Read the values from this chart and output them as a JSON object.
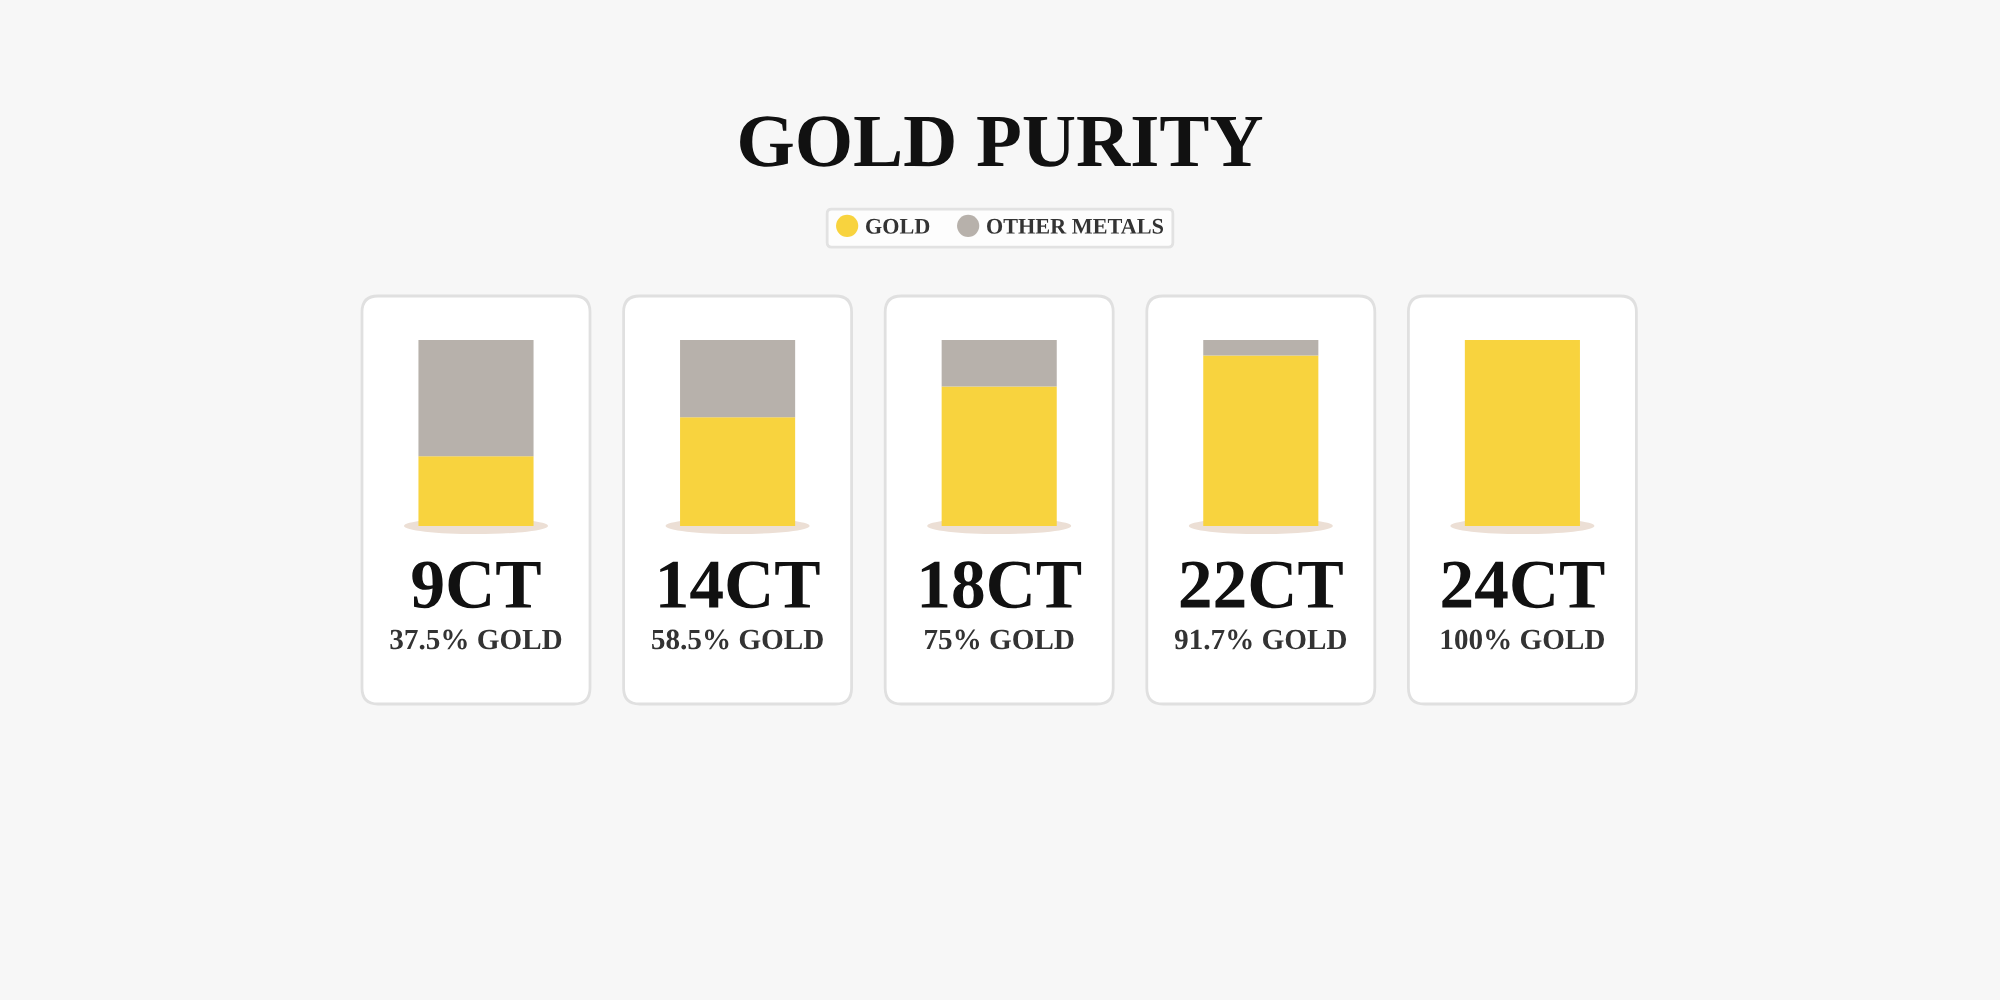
{
  "chart_data": {
    "type": "bar",
    "stacked": true,
    "title": "GOLD PURITY",
    "categories": [
      "9CT",
      "14CT",
      "18CT",
      "22CT",
      "24CT"
    ],
    "series": [
      {
        "name": "GOLD",
        "color": "#f8d33e",
        "values": [
          37.5,
          58.5,
          75,
          91.7,
          100
        ],
        "value_labels": [
          "37.5% GOLD",
          "58.5% GOLD",
          "75% GOLD",
          "91.7% GOLD",
          "100% GOLD"
        ]
      },
      {
        "name": "OTHER METALS",
        "color": "#b7b1ab",
        "values": [
          62.5,
          41.5,
          25,
          8.3,
          0
        ]
      }
    ],
    "legend": "top",
    "tick_labels": "x",
    "grid": false
  }
}
